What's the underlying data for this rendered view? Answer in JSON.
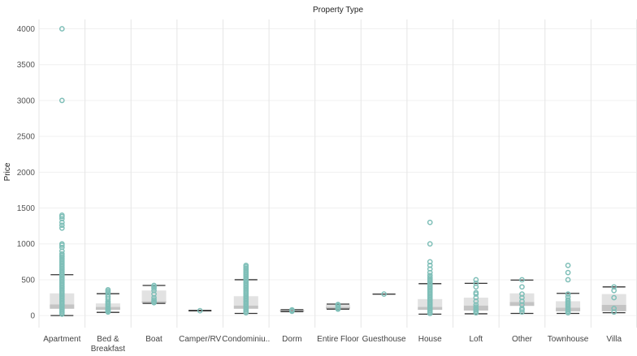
{
  "chart_data": {
    "type": "boxplot",
    "title": "Property Type",
    "xlabel": "",
    "ylabel": "Price",
    "ylim": [
      -100,
      4130
    ],
    "yticks": [
      0,
      500,
      1000,
      1500,
      2000,
      2500,
      3000,
      3500,
      4000
    ],
    "yticklabels": [
      "0",
      "500",
      "1000",
      "1500",
      "2000",
      "2500",
      "3000",
      "3500",
      "4000"
    ],
    "grid": true,
    "colors": {
      "points": "#7fbfb8",
      "box_upper": "#e2e2e2",
      "box_lower": "#c4c4c4",
      "whisker": "#333333",
      "gridline": "#f0f0f0",
      "separator": "#e6e6e6"
    },
    "categories": [
      {
        "label": [
          "Apartment"
        ],
        "whisker_low": 0,
        "q1": 95,
        "median": 155,
        "q3": 310,
        "whisker_high": 570,
        "points": [
          20,
          40,
          60,
          80,
          100,
          120,
          140,
          160,
          180,
          200,
          220,
          240,
          260,
          280,
          300,
          320,
          340,
          360,
          380,
          400,
          420,
          440,
          460,
          480,
          500,
          520,
          540,
          560,
          580,
          600,
          620,
          640,
          660,
          680,
          700,
          720,
          740,
          760,
          780,
          800,
          820,
          840,
          860,
          900,
          950,
          980,
          1000,
          1220,
          1260,
          1300,
          1350,
          1380,
          1400,
          3000,
          4000
        ]
      },
      {
        "label": [
          "Bed &",
          "Breakfast"
        ],
        "whisker_low": 45,
        "q1": 80,
        "median": 120,
        "q3": 170,
        "whisker_high": 305,
        "points": [
          50,
          60,
          70,
          80,
          90,
          100,
          120,
          140,
          160,
          180,
          200,
          230,
          260,
          290,
          320,
          340,
          360
        ]
      },
      {
        "label": [
          "Boat"
        ],
        "whisker_low": 170,
        "q1": 175,
        "median": 200,
        "q3": 350,
        "whisker_high": 420,
        "points": [
          180,
          190,
          200,
          220,
          250,
          300,
          350,
          380,
          400,
          420
        ]
      },
      {
        "label": [
          "Camper/RV"
        ],
        "whisker_low": 65,
        "q1": 65,
        "median": 68,
        "q3": 72,
        "whisker_high": 72,
        "points": [
          68
        ]
      },
      {
        "label": [
          "Condominiu.."
        ],
        "whisker_low": 30,
        "q1": 95,
        "median": 140,
        "q3": 270,
        "whisker_high": 500,
        "points": [
          40,
          60,
          80,
          100,
          120,
          140,
          160,
          180,
          200,
          220,
          240,
          260,
          280,
          300,
          320,
          340,
          360,
          380,
          400,
          420,
          440,
          460,
          480,
          500,
          520,
          540,
          560,
          580,
          600,
          620,
          640,
          660,
          680,
          700
        ]
      },
      {
        "label": [
          "Dorm"
        ],
        "whisker_low": 55,
        "q1": 58,
        "median": 70,
        "q3": 80,
        "whisker_high": 82,
        "points": [
          60,
          70,
          80
        ]
      },
      {
        "label": [
          "Entire Floor"
        ],
        "whisker_low": 90,
        "q1": 95,
        "median": 120,
        "q3": 150,
        "whisker_high": 160,
        "points": [
          90,
          100,
          120,
          140,
          155
        ]
      },
      {
        "label": [
          "Guesthouse"
        ],
        "whisker_low": 300,
        "q1": 300,
        "median": 300,
        "q3": 300,
        "whisker_high": 300,
        "points": [
          300
        ]
      },
      {
        "label": [
          "House"
        ],
        "whisker_low": 20,
        "q1": 80,
        "median": 120,
        "q3": 230,
        "whisker_high": 445,
        "points": [
          30,
          50,
          70,
          90,
          110,
          130,
          150,
          170,
          190,
          210,
          230,
          250,
          270,
          290,
          310,
          330,
          350,
          370,
          390,
          410,
          430,
          450,
          470,
          490,
          510,
          530,
          560,
          600,
          650,
          700,
          750,
          1000,
          1300
        ]
      },
      {
        "label": [
          "Loft"
        ],
        "whisker_low": 25,
        "q1": 70,
        "median": 140,
        "q3": 250,
        "whisker_high": 450,
        "points": [
          40,
          60,
          80,
          100,
          120,
          150,
          200,
          250,
          300,
          320,
          400,
          450,
          500
        ]
      },
      {
        "label": [
          "Other"
        ],
        "whisker_low": 30,
        "q1": 135,
        "median": 190,
        "q3": 310,
        "whisker_high": 495,
        "points": [
          50,
          80,
          100,
          150,
          200,
          250,
          300,
          400,
          500
        ]
      },
      {
        "label": [
          "Townhouse"
        ],
        "whisker_low": 30,
        "q1": 60,
        "median": 110,
        "q3": 200,
        "whisker_high": 310,
        "points": [
          40,
          60,
          80,
          100,
          120,
          140,
          160,
          180,
          200,
          220,
          260,
          300,
          500,
          600,
          700
        ]
      },
      {
        "label": [
          "Villa"
        ],
        "whisker_low": 40,
        "q1": 60,
        "median": 150,
        "q3": 300,
        "whisker_high": 400,
        "points": [
          50,
          100,
          250,
          350,
          400
        ]
      }
    ]
  }
}
